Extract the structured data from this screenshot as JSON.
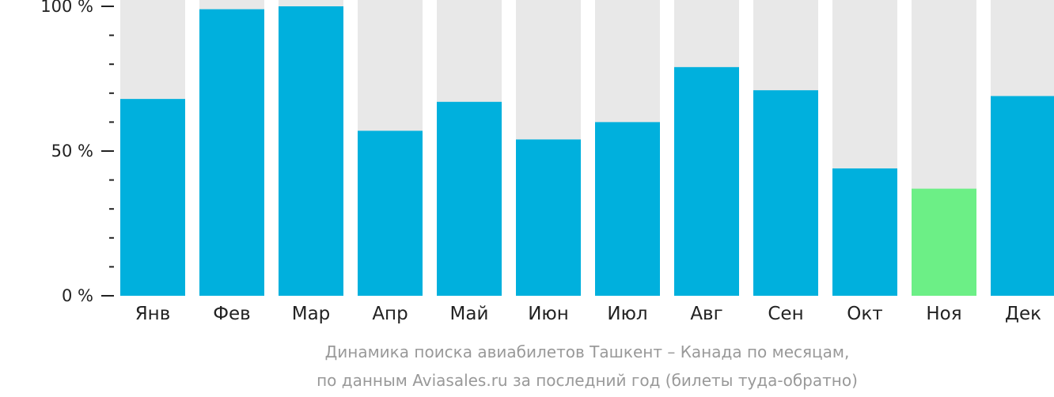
{
  "chart_data": {
    "type": "bar",
    "categories": [
      "Янв",
      "Фев",
      "Мар",
      "Апр",
      "Май",
      "Июн",
      "Июл",
      "Авг",
      "Сен",
      "Окт",
      "Ноя",
      "Дек"
    ],
    "values": [
      68,
      99,
      100,
      57,
      67,
      54,
      60,
      79,
      71,
      44,
      37,
      69
    ],
    "highlight_index": 10,
    "ylim": [
      0,
      100
    ],
    "yticks": [
      {
        "value": 0,
        "label": "0 %"
      },
      {
        "value": 50,
        "label": "50 %"
      },
      {
        "value": 100,
        "label": "100 %"
      }
    ],
    "minor_step": 10,
    "caption_lines": [
      "Динамика поиска авиабилетов Ташкент – Канада по месяцам,",
      "по данным Aviasales.ru за последний год (билеты туда-обратно)"
    ],
    "colors": {
      "bar": "#00b0dd",
      "highlight": "#6cef86",
      "track": "#e8e8e8",
      "axis": "#222222"
    }
  }
}
